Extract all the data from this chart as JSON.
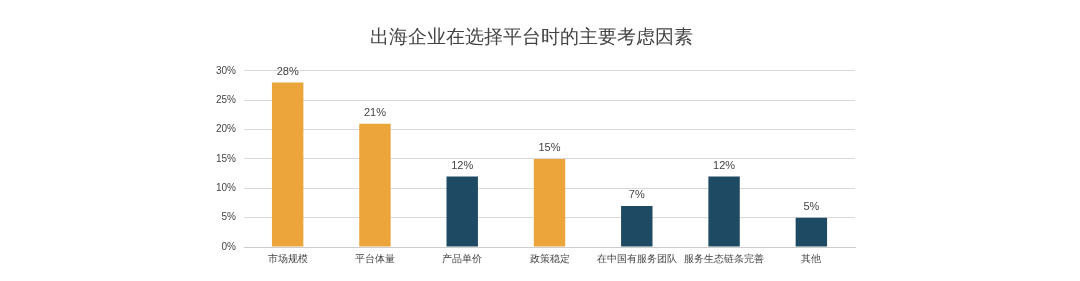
{
  "chart_data": {
    "type": "bar",
    "title": "出海企业在选择平台时的主要考虑因素",
    "categories": [
      "市场规模",
      "平台体量",
      "产品单价",
      "政策稳定",
      "在中国有服务团队",
      "服务生态链条完善",
      "其他"
    ],
    "values": [
      28,
      21,
      12,
      15,
      7,
      12,
      5
    ],
    "colors": [
      "#eca53a",
      "#eca53a",
      "#1e4a63",
      "#eca53a",
      "#1e4a63",
      "#1e4a63",
      "#1e4a63"
    ],
    "value_labels": [
      "28%",
      "21%",
      "12%",
      "15%",
      "7%",
      "12%",
      "5%"
    ],
    "ylim": [
      0,
      30
    ],
    "yticks": [
      {
        "value": 0,
        "label": "0%"
      },
      {
        "value": 5,
        "label": "5%"
      },
      {
        "value": 10,
        "label": "10%"
      },
      {
        "value": 15,
        "label": "15%"
      },
      {
        "value": 20,
        "label": "20%"
      },
      {
        "value": 25,
        "label": "25%"
      },
      {
        "value": 30,
        "label": "30%"
      }
    ],
    "grid": "y",
    "legend": false
  }
}
